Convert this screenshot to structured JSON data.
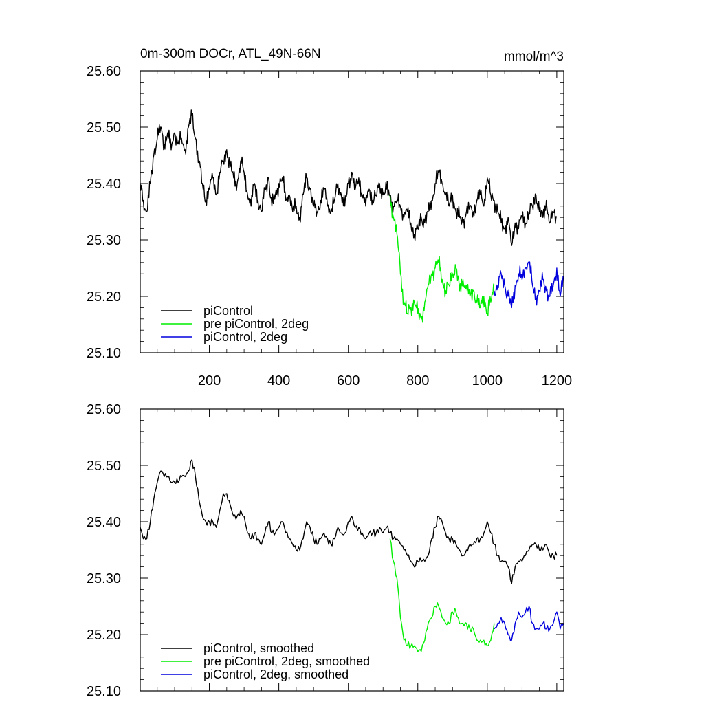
{
  "colors": {
    "piControl": "#000000",
    "pre_piControl_2deg": "#00ee00",
    "piControl_2deg": "#0000dd"
  },
  "chart_data": [
    {
      "type": "line",
      "title": "0m-300m DOCr, ATL_49N-66N",
      "units": "mmol/m^3",
      "xlim": [
        1,
        1220
      ],
      "ylim": [
        25.1,
        25.6
      ],
      "xticks": [
        200,
        400,
        600,
        800,
        1000,
        1200
      ],
      "xtick_labels": [
        "200",
        "400",
        "600",
        "800",
        "1000",
        "1200"
      ],
      "yticks": [
        25.1,
        25.2,
        25.3,
        25.4,
        25.5,
        25.6
      ],
      "ytick_labels": [
        "25.10",
        "25.20",
        "25.30",
        "25.40",
        "25.50",
        "25.60"
      ],
      "legend": "bottom-left",
      "grid": false,
      "series": [
        {
          "name": "piControl",
          "color": "#000000",
          "x": [
            1,
            10,
            20,
            30,
            40,
            50,
            60,
            70,
            80,
            90,
            100,
            110,
            120,
            130,
            140,
            150,
            160,
            170,
            180,
            190,
            200,
            210,
            220,
            230,
            240,
            250,
            260,
            270,
            280,
            290,
            300,
            310,
            320,
            330,
            340,
            350,
            360,
            370,
            380,
            390,
            400,
            410,
            420,
            430,
            440,
            450,
            460,
            470,
            480,
            490,
            500,
            510,
            520,
            530,
            540,
            550,
            560,
            570,
            580,
            590,
            600,
            610,
            620,
            630,
            640,
            650,
            660,
            670,
            680,
            690,
            700,
            710,
            720,
            730,
            740,
            750,
            760,
            770,
            780,
            790,
            800,
            810,
            820,
            830,
            840,
            850,
            860,
            870,
            880,
            890,
            900,
            910,
            920,
            930,
            940,
            950,
            960,
            970,
            980,
            990,
            1000,
            1010,
            1020,
            1030,
            1040,
            1050,
            1060,
            1070,
            1080,
            1090,
            1100,
            1110,
            1120,
            1130,
            1140,
            1150,
            1160,
            1170,
            1180,
            1190,
            1200
          ],
          "values": [
            25.4,
            25.37,
            25.35,
            25.4,
            25.45,
            25.48,
            25.5,
            25.47,
            25.49,
            25.46,
            25.49,
            25.47,
            25.48,
            25.46,
            25.5,
            25.52,
            25.48,
            25.44,
            25.4,
            25.37,
            25.39,
            25.41,
            25.38,
            25.42,
            25.44,
            25.46,
            25.43,
            25.41,
            25.4,
            25.44,
            25.42,
            25.38,
            25.36,
            25.4,
            25.37,
            25.35,
            25.39,
            25.41,
            25.36,
            25.38,
            25.4,
            25.41,
            25.37,
            25.38,
            25.35,
            25.36,
            25.34,
            25.38,
            25.41,
            25.39,
            25.36,
            25.35,
            25.37,
            25.39,
            25.36,
            25.35,
            25.37,
            25.4,
            25.38,
            25.36,
            25.4,
            25.42,
            25.39,
            25.41,
            25.38,
            25.36,
            25.39,
            25.37,
            25.38,
            25.4,
            25.38,
            25.39,
            25.38,
            25.36,
            25.37,
            25.36,
            25.34,
            25.35,
            25.33,
            25.31,
            25.32,
            25.34,
            25.33,
            25.35,
            25.37,
            25.4,
            25.42,
            25.4,
            25.38,
            25.36,
            25.38,
            25.35,
            25.34,
            25.33,
            25.35,
            25.36,
            25.35,
            25.37,
            25.38,
            25.36,
            25.41,
            25.38,
            25.37,
            25.35,
            25.33,
            25.32,
            25.34,
            25.29,
            25.33,
            25.32,
            25.34,
            25.33,
            25.35,
            25.36,
            25.38,
            25.35,
            25.34,
            25.37,
            25.33,
            25.35,
            25.34
          ]
        },
        {
          "name": "pre piControl, 2deg",
          "color": "#00ee00",
          "x": [
            720,
            730,
            740,
            745,
            750,
            760,
            770,
            780,
            790,
            800,
            810,
            820,
            830,
            840,
            850,
            860,
            870,
            880,
            890,
            900,
            910,
            920,
            930,
            940,
            950,
            960,
            970,
            980,
            990,
            1000,
            1010,
            1020
          ],
          "values": [
            25.38,
            25.34,
            25.31,
            25.28,
            25.24,
            25.19,
            25.17,
            25.18,
            25.19,
            25.17,
            25.16,
            25.19,
            25.22,
            25.24,
            25.25,
            25.26,
            25.23,
            25.21,
            25.22,
            25.24,
            25.25,
            25.21,
            25.23,
            25.22,
            25.2,
            25.21,
            25.19,
            25.18,
            25.2,
            25.17,
            25.19,
            25.22
          ]
        },
        {
          "name": "piControl, 2deg",
          "color": "#0000dd",
          "x": [
            1020,
            1030,
            1040,
            1050,
            1060,
            1070,
            1080,
            1090,
            1100,
            1110,
            1120,
            1130,
            1140,
            1150,
            1160,
            1170,
            1180,
            1190,
            1200,
            1210,
            1220
          ],
          "values": [
            25.21,
            25.22,
            25.24,
            25.22,
            25.2,
            25.18,
            25.22,
            25.24,
            25.23,
            25.25,
            25.26,
            25.22,
            25.2,
            25.21,
            25.23,
            25.21,
            25.2,
            25.22,
            25.25,
            25.2,
            25.23
          ]
        }
      ]
    },
    {
      "type": "line",
      "xlim": [
        1,
        1220
      ],
      "ylim": [
        25.1,
        25.6
      ],
      "yticks": [
        25.1,
        25.2,
        25.3,
        25.4,
        25.5,
        25.6
      ],
      "ytick_labels": [
        "25.10",
        "25.20",
        "25.30",
        "25.40",
        "25.50",
        "25.60"
      ],
      "legend": "bottom-left",
      "grid": false,
      "series": [
        {
          "name": "piControl, smoothed",
          "color": "#000000",
          "x": [
            1,
            10,
            20,
            30,
            40,
            50,
            60,
            70,
            80,
            90,
            100,
            110,
            120,
            130,
            140,
            150,
            160,
            170,
            180,
            190,
            200,
            210,
            220,
            230,
            240,
            250,
            260,
            270,
            280,
            290,
            300,
            310,
            320,
            330,
            340,
            350,
            360,
            370,
            380,
            390,
            400,
            410,
            420,
            430,
            440,
            450,
            460,
            470,
            480,
            490,
            500,
            510,
            520,
            530,
            540,
            550,
            560,
            570,
            580,
            590,
            600,
            610,
            620,
            630,
            640,
            650,
            660,
            670,
            680,
            690,
            700,
            710,
            720,
            730,
            740,
            750,
            760,
            770,
            780,
            790,
            800,
            810,
            820,
            830,
            840,
            850,
            860,
            870,
            880,
            890,
            900,
            910,
            920,
            930,
            940,
            950,
            960,
            970,
            980,
            990,
            1000,
            1010,
            1020,
            1030,
            1040,
            1050,
            1060,
            1070,
            1080,
            1090,
            1100,
            1110,
            1120,
            1130,
            1140,
            1150,
            1160,
            1170,
            1180,
            1190,
            1200
          ],
          "values": [
            25.39,
            25.37,
            25.37,
            25.4,
            25.44,
            25.47,
            25.49,
            25.48,
            25.48,
            25.47,
            25.47,
            25.47,
            25.48,
            25.48,
            25.49,
            25.51,
            25.48,
            25.44,
            25.41,
            25.4,
            25.4,
            25.4,
            25.39,
            25.42,
            25.45,
            25.45,
            25.43,
            25.41,
            25.41,
            25.42,
            25.41,
            25.38,
            25.37,
            25.38,
            25.37,
            25.36,
            25.38,
            25.4,
            25.38,
            25.38,
            25.39,
            25.4,
            25.38,
            25.37,
            25.36,
            25.35,
            25.35,
            25.37,
            25.4,
            25.39,
            25.37,
            25.36,
            25.37,
            25.38,
            25.37,
            25.36,
            25.37,
            25.39,
            25.38,
            25.38,
            25.4,
            25.41,
            25.39,
            25.39,
            25.38,
            25.37,
            25.38,
            25.38,
            25.38,
            25.39,
            25.38,
            25.39,
            25.38,
            25.37,
            25.37,
            25.36,
            25.35,
            25.34,
            25.33,
            25.32,
            25.33,
            25.33,
            25.33,
            25.34,
            25.37,
            25.39,
            25.41,
            25.4,
            25.38,
            25.37,
            25.37,
            25.36,
            25.35,
            25.34,
            25.35,
            25.36,
            25.36,
            25.37,
            25.37,
            25.38,
            25.4,
            25.38,
            25.36,
            25.34,
            25.33,
            25.33,
            25.32,
            25.29,
            25.32,
            25.33,
            25.33,
            25.34,
            25.35,
            25.36,
            25.36,
            25.35,
            25.35,
            25.36,
            25.34,
            25.34,
            25.34
          ]
        },
        {
          "name": "pre piControl, 2deg, smoothed",
          "color": "#00ee00",
          "x": [
            720,
            730,
            740,
            745,
            750,
            760,
            770,
            780,
            790,
            800,
            810,
            820,
            830,
            840,
            850,
            860,
            870,
            880,
            890,
            900,
            910,
            920,
            930,
            940,
            950,
            960,
            970,
            980,
            990,
            1000,
            1010,
            1020
          ],
          "values": [
            25.37,
            25.33,
            25.3,
            25.27,
            25.23,
            25.19,
            25.18,
            25.18,
            25.18,
            25.17,
            25.17,
            25.19,
            25.22,
            25.23,
            25.25,
            25.25,
            25.23,
            25.22,
            25.22,
            25.24,
            25.24,
            25.22,
            25.22,
            25.22,
            25.21,
            25.21,
            25.19,
            25.19,
            25.19,
            25.18,
            25.19,
            25.22
          ]
        },
        {
          "name": "piControl, 2deg, smoothed",
          "color": "#0000dd",
          "x": [
            1020,
            1030,
            1040,
            1050,
            1060,
            1070,
            1080,
            1090,
            1100,
            1110,
            1120,
            1130,
            1140,
            1150,
            1160,
            1170,
            1180,
            1190,
            1200,
            1210,
            1220
          ],
          "values": [
            25.21,
            25.22,
            25.23,
            25.22,
            25.2,
            25.19,
            25.22,
            25.24,
            25.23,
            25.24,
            25.25,
            25.22,
            25.21,
            25.21,
            25.22,
            25.21,
            25.21,
            25.22,
            25.24,
            25.21,
            25.22
          ]
        }
      ]
    }
  ]
}
